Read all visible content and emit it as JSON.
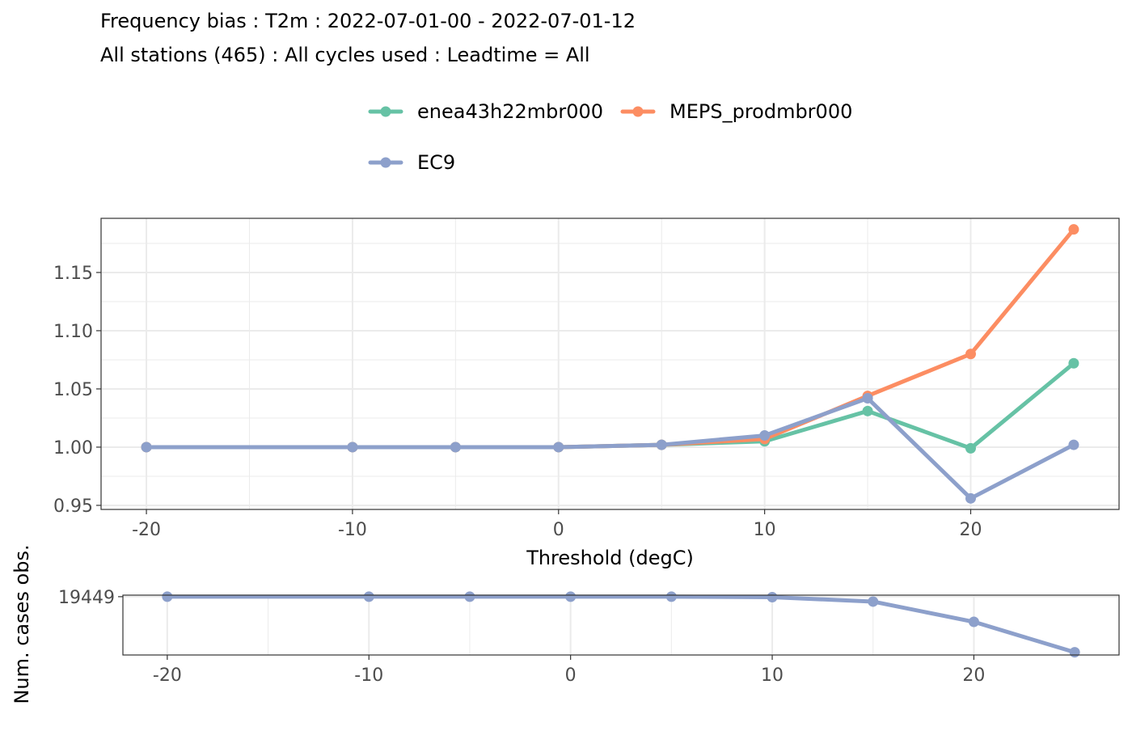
{
  "title": "Frequency bias : T2m : 2022-07-01-00 - 2022-07-01-12",
  "subtitle": "All stations (465) : All cycles used : Leadtime = All",
  "chart_data": [
    {
      "type": "line",
      "xlabel": "Threshold (degC)",
      "ylabel": "",
      "x": [
        -20,
        -10,
        -5,
        0,
        5,
        10,
        15,
        20,
        25
      ],
      "xlim": [
        -22.2,
        27.2
      ],
      "ylim": [
        0.9465,
        1.1965
      ],
      "xticks": [
        -20,
        -10,
        0,
        10,
        20
      ],
      "xtick_labels": [
        "-20",
        "-10",
        "0",
        "10",
        "20"
      ],
      "yticks": [
        0.95,
        1.0,
        1.05,
        1.1,
        1.15
      ],
      "ytick_labels": [
        "0.95",
        "1.00",
        "1.05",
        "1.10",
        "1.15"
      ],
      "grid": true,
      "legend_position": "top",
      "series": [
        {
          "name": "enea43h22mbr000",
          "color": "#66c2a5",
          "values": [
            1.0,
            1.0,
            1.0,
            1.0,
            1.002,
            1.005,
            1.031,
            0.999,
            1.072
          ]
        },
        {
          "name": "MEPS_prodmbr000",
          "color": "#fc8d62",
          "values": [
            1.0,
            1.0,
            1.0,
            1.0,
            1.002,
            1.007,
            1.044,
            1.08,
            1.187
          ]
        },
        {
          "name": "EC9",
          "color": "#8da0cb",
          "values": [
            1.0,
            1.0,
            1.0,
            1.0,
            1.002,
            1.01,
            1.042,
            0.956,
            1.002
          ]
        }
      ]
    },
    {
      "type": "line",
      "xlabel": "",
      "ylabel": "Num. cases obs.",
      "x": [
        -20,
        -10,
        -5,
        0,
        5,
        10,
        15,
        20,
        25
      ],
      "xlim": [
        -22.2,
        27.2
      ],
      "ylim": [
        2200,
        19900
      ],
      "xticks": [
        -20,
        -10,
        0,
        10,
        20
      ],
      "xtick_labels": [
        "-20",
        "-10",
        "0",
        "10",
        "20"
      ],
      "yticks": [
        19449
      ],
      "ytick_labels": [
        "19449"
      ],
      "grid": true,
      "series": [
        {
          "name": "EC9",
          "color": "#8da0cb",
          "values": [
            19449,
            19449,
            19449,
            19449,
            19449,
            19300,
            18000,
            12000,
            3000
          ]
        }
      ]
    }
  ]
}
